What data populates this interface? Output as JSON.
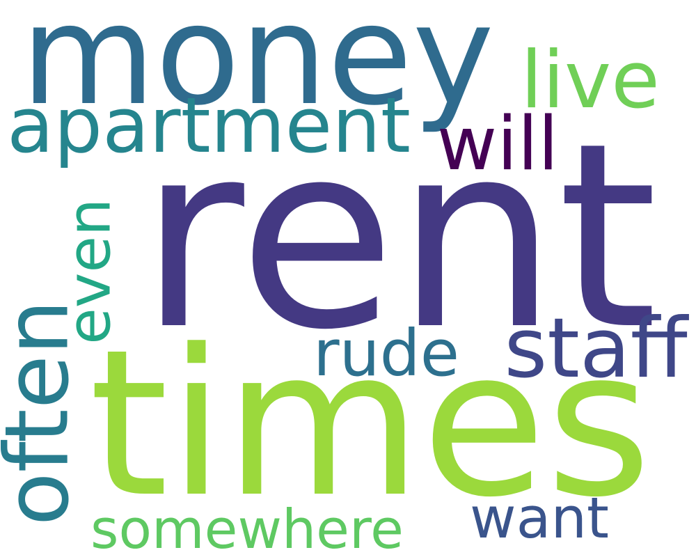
{
  "words": [
    {
      "text": "rent",
      "color": "#443983"
    },
    {
      "text": "times",
      "color": "#9bd93c"
    },
    {
      "text": "money",
      "color": "#2f6b8e"
    },
    {
      "text": "apartment",
      "color": "#25858e"
    },
    {
      "text": "live",
      "color": "#70cf57"
    },
    {
      "text": "will",
      "color": "#440154"
    },
    {
      "text": "even",
      "color": "#22a785"
    },
    {
      "text": "often",
      "color": "#287c8e"
    },
    {
      "text": "rude",
      "color": "#2d708e"
    },
    {
      "text": "staff",
      "color": "#3f4788"
    },
    {
      "text": "want",
      "color": "#3a548c"
    },
    {
      "text": "somewhere",
      "color": "#5ec962"
    }
  ]
}
